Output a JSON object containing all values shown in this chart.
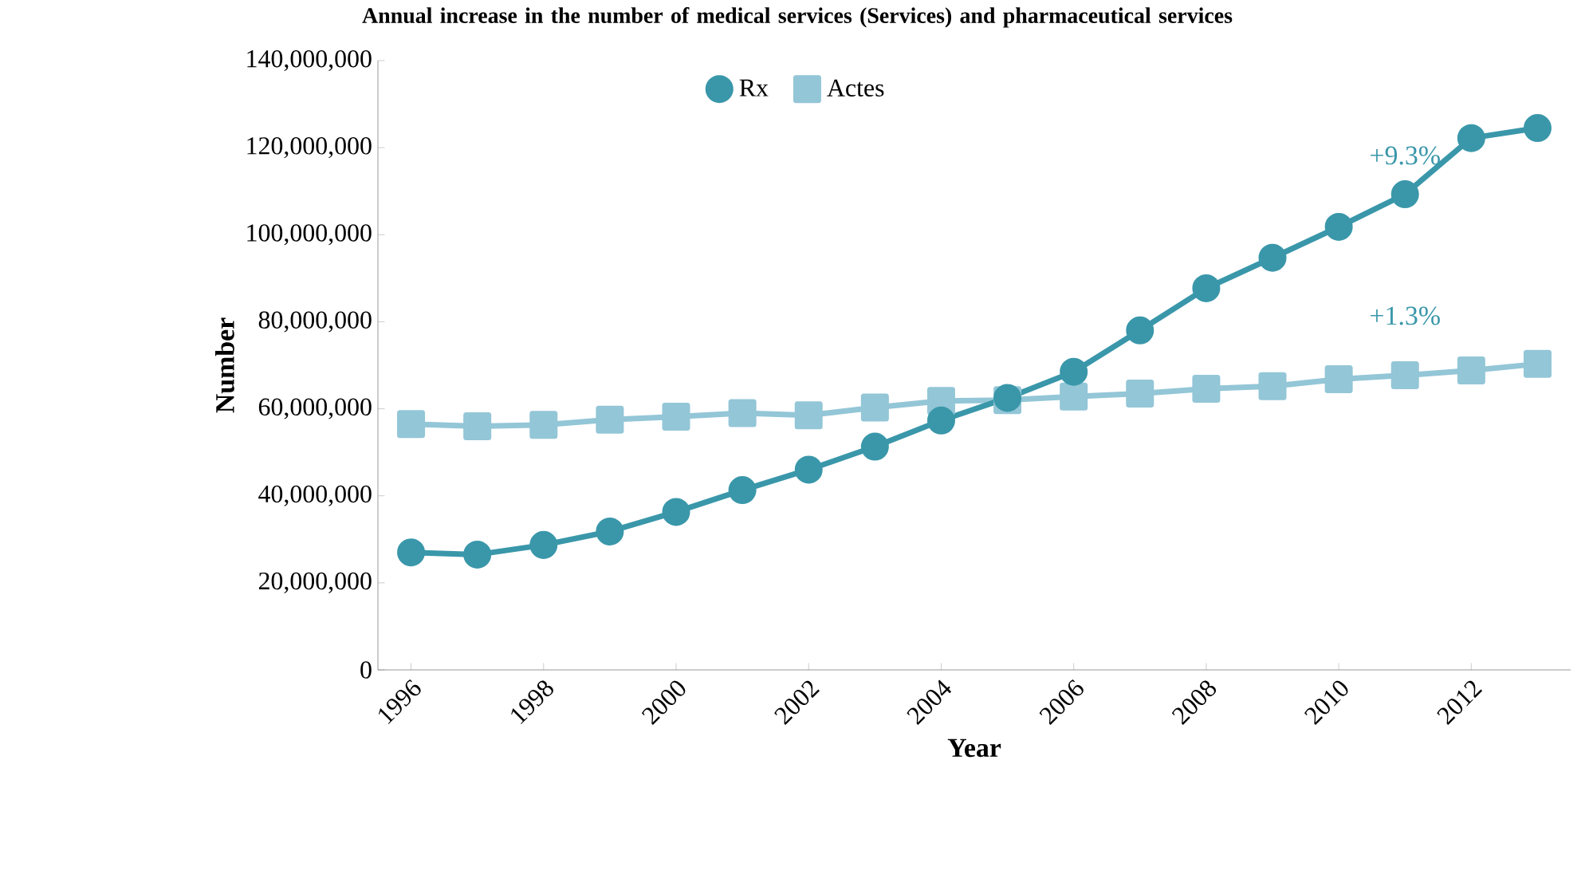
{
  "chart_data": {
    "type": "line",
    "title": "Annual increase in the number of medical services (Services) and pharmaceutical services",
    "xlabel": "Year",
    "ylabel": "Number",
    "categories": [
      "1996",
      null,
      "1998",
      null,
      "2000",
      null,
      "2002",
      null,
      "2004",
      null,
      "2006",
      null,
      "2008",
      null,
      "2010",
      null,
      "2012",
      null
    ],
    "series": [
      {
        "name": "Rx",
        "color": "#3a97aa",
        "marker": "circle",
        "values": [
          27000000,
          26500000,
          28700000,
          31800000,
          36300000,
          41300000,
          46000000,
          51300000,
          57300000,
          62500000,
          68500000,
          78000000,
          87700000,
          94700000,
          101800000,
          109300000,
          122200000,
          124500000
        ]
      },
      {
        "name": "Actes",
        "color": "#93c6d7",
        "marker": "square",
        "values": [
          56500000,
          56000000,
          56300000,
          57500000,
          58200000,
          59000000,
          58500000,
          60300000,
          61800000,
          62000000,
          62800000,
          63500000,
          64600000,
          65200000,
          66800000,
          67700000,
          68800000,
          70300000
        ]
      }
    ],
    "ylim": [
      0,
      140000000
    ],
    "yticks": [
      {
        "value": 0,
        "label": "0"
      },
      {
        "value": 20000000,
        "label": "20,000,000"
      },
      {
        "value": 40000000,
        "label": "40,000,000"
      },
      {
        "value": 60000000,
        "label": "60,000,000"
      },
      {
        "value": 80000000,
        "label": "80,000,000"
      },
      {
        "value": 100000000,
        "label": "100,000,000"
      },
      {
        "value": 120000000,
        "label": "120,000,000"
      },
      {
        "value": 140000000,
        "label": "140,000,000"
      }
    ],
    "annotations": [
      "+9.3%",
      "+1.3%"
    ],
    "legend": "top",
    "grid": false,
    "line_style": "solid"
  }
}
